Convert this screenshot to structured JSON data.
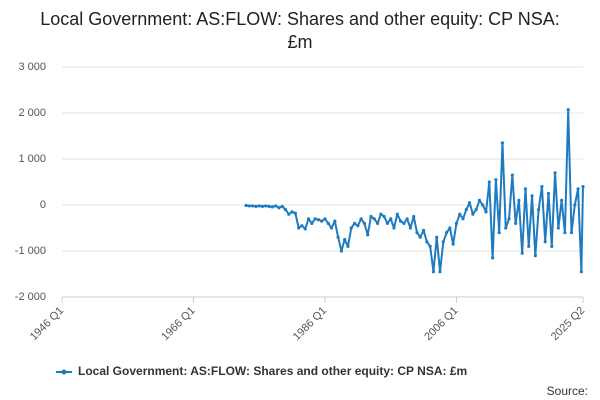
{
  "chart_data": {
    "type": "line",
    "title": "Local Government: AS:FLOW: Shares and other equity: CP NSA: £m",
    "x": [
      "1974 Q1",
      "1974 Q3",
      "1975 Q1",
      "1975 Q3",
      "1976 Q1",
      "1976 Q3",
      "1977 Q1",
      "1977 Q3",
      "1978 Q1",
      "1978 Q3",
      "1979 Q1",
      "1979 Q3",
      "1980 Q1",
      "1980 Q3",
      "1981 Q1",
      "1981 Q3",
      "1982 Q1",
      "1982 Q3",
      "1983 Q1",
      "1983 Q3",
      "1984 Q1",
      "1984 Q3",
      "1985 Q1",
      "1985 Q3",
      "1986 Q1",
      "1986 Q3",
      "1987 Q1",
      "1987 Q3",
      "1988 Q1",
      "1988 Q3",
      "1989 Q1",
      "1989 Q3",
      "1990 Q1",
      "1990 Q3",
      "1991 Q1",
      "1991 Q3",
      "1992 Q1",
      "1992 Q3",
      "1993 Q1",
      "1993 Q3",
      "1994 Q1",
      "1994 Q3",
      "1995 Q1",
      "1995 Q3",
      "1996 Q1",
      "1996 Q3",
      "1997 Q1",
      "1997 Q3",
      "1998 Q1",
      "1998 Q3",
      "1999 Q1",
      "1999 Q3",
      "2000 Q1",
      "2000 Q3",
      "2001 Q1",
      "2001 Q3",
      "2002 Q1",
      "2002 Q3",
      "2003 Q1",
      "2003 Q3",
      "2004 Q1",
      "2004 Q3",
      "2005 Q1",
      "2005 Q3",
      "2006 Q1",
      "2006 Q3",
      "2007 Q1",
      "2007 Q3",
      "2008 Q1",
      "2008 Q3",
      "2009 Q1",
      "2009 Q3",
      "2010 Q1",
      "2010 Q3",
      "2011 Q1",
      "2011 Q3",
      "2012 Q1",
      "2012 Q3",
      "2013 Q1",
      "2013 Q3",
      "2014 Q1",
      "2014 Q3",
      "2015 Q1",
      "2015 Q3",
      "2016 Q1",
      "2016 Q3",
      "2017 Q1",
      "2017 Q3",
      "2018 Q1",
      "2018 Q3",
      "2019 Q1",
      "2019 Q3",
      "2020 Q1",
      "2020 Q3",
      "2021 Q1",
      "2021 Q3",
      "2022 Q1",
      "2022 Q3",
      "2023 Q1",
      "2023 Q3",
      "2024 Q1",
      "2024 Q3",
      "2025 Q1",
      "2025 Q2"
    ],
    "series": [
      {
        "name": "Local Government: AS:FLOW: Shares and other equity: CP NSA: £m",
        "color": "#1f7bbf",
        "values": [
          -10,
          -20,
          -20,
          -30,
          -20,
          -30,
          -20,
          -30,
          -40,
          -20,
          -60,
          -30,
          -100,
          -200,
          -150,
          -180,
          -500,
          -450,
          -520,
          -300,
          -400,
          -300,
          -320,
          -350,
          -300,
          -400,
          -500,
          -350,
          -700,
          -1000,
          -750,
          -900,
          -500,
          -400,
          -450,
          -300,
          -400,
          -650,
          -250,
          -300,
          -400,
          -200,
          -250,
          -400,
          -300,
          -500,
          -200,
          -350,
          -400,
          -300,
          -500,
          -250,
          -600,
          -700,
          -550,
          -800,
          -900,
          -1450,
          -700,
          -1450,
          -800,
          -600,
          -500,
          -850,
          -400,
          -200,
          -300,
          -100,
          50,
          -200,
          -100,
          100,
          0,
          -150,
          500,
          -1150,
          550,
          -600,
          1350,
          -500,
          -300,
          650,
          -400,
          100,
          -1050,
          350,
          -900,
          200,
          -1100,
          -100,
          400,
          -800,
          250,
          -900,
          700,
          -500,
          100,
          -600,
          2070,
          -600,
          0,
          350,
          -1450,
          400
        ]
      }
    ],
    "xlim": [
      "1946 Q1",
      "2025 Q2"
    ],
    "xticks": [
      "1946 Q1",
      "1966 Q1",
      "1986 Q1",
      "2006 Q1",
      "2025 Q2"
    ],
    "ylim": [
      -2000,
      3000
    ],
    "yticks": [
      {
        "value": -2000,
        "label": "-2 000"
      },
      {
        "value": -1000,
        "label": "-1 000"
      },
      0,
      {
        "value": 1000,
        "label": "1 000"
      },
      {
        "value": 2000,
        "label": "2 000"
      },
      {
        "value": 3000,
        "label": "3 000"
      }
    ],
    "grid": true,
    "legend": "bottom",
    "source": "Source:"
  }
}
